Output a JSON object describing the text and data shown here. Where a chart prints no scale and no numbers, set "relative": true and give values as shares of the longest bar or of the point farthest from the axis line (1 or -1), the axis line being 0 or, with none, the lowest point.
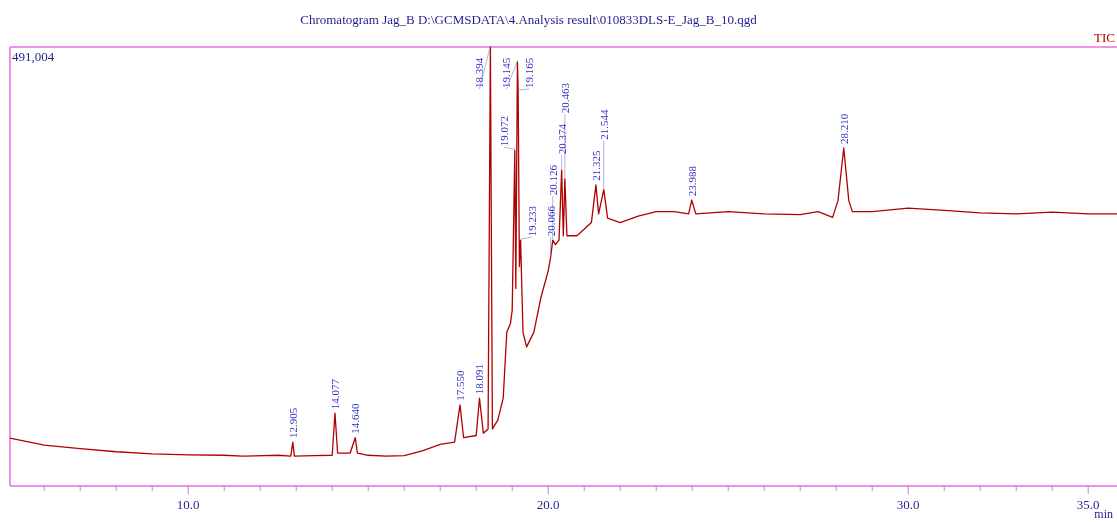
{
  "chart_data": {
    "type": "line",
    "title": "Chromatogram Jag_B D:\\GCMSDATA\\4.Analysis result\\010833DLS-E_Jag_B_10.qgd",
    "xlabel": "min",
    "relative": true,
    "legend": "top right",
    "grid": false,
    "xlim": [
      5.05,
      35.8
    ],
    "xticks": [
      {
        "value": 6,
        "label": null
      },
      {
        "value": 7,
        "label": null
      },
      {
        "value": 8,
        "label": null
      },
      {
        "value": 9,
        "label": null
      },
      {
        "value": 10,
        "label": "10.0"
      },
      {
        "value": 11,
        "label": null
      },
      {
        "value": 12,
        "label": null
      },
      {
        "value": 13,
        "label": null
      },
      {
        "value": 14,
        "label": null
      },
      {
        "value": 15,
        "label": null
      },
      {
        "value": 16,
        "label": null
      },
      {
        "value": 17,
        "label": null
      },
      {
        "value": 18,
        "label": null
      },
      {
        "value": 19,
        "label": null
      },
      {
        "value": 20,
        "label": "20.0"
      },
      {
        "value": 21,
        "label": null
      },
      {
        "value": 22,
        "label": null
      },
      {
        "value": 23,
        "label": null
      },
      {
        "value": 24,
        "label": null
      },
      {
        "value": 25,
        "label": null
      },
      {
        "value": 26,
        "label": null
      },
      {
        "value": 27,
        "label": null
      },
      {
        "value": 28,
        "label": null
      },
      {
        "value": 29,
        "label": null
      },
      {
        "value": 30,
        "label": "30.0"
      },
      {
        "value": 31,
        "label": null
      },
      {
        "value": 32,
        "label": null
      },
      {
        "value": 33,
        "label": null
      },
      {
        "value": 34,
        "label": null
      },
      {
        "value": 35,
        "label": "35.0"
      }
    ],
    "series": [
      {
        "name": "TIC",
        "color": "#b00000",
        "x": [
          5.05,
          6,
          7,
          8,
          9,
          10,
          11,
          11.5,
          12.5,
          12.85,
          12.905,
          12.95,
          13.5,
          14,
          14.077,
          14.15,
          14.5,
          14.64,
          14.7,
          15,
          15.5,
          16,
          16.5,
          17,
          17.4,
          17.55,
          17.65,
          18,
          18.091,
          18.2,
          18.33,
          18.394,
          18.45,
          18.6,
          18.75,
          18.85,
          18.95,
          19,
          19.072,
          19.1,
          19.145,
          19.165,
          19.2,
          19.233,
          19.3,
          19.4,
          19.6,
          19.8,
          20,
          20.066,
          20.126,
          20.2,
          20.3,
          20.374,
          20.42,
          20.463,
          20.52,
          20.8,
          21.2,
          21.325,
          21.4,
          21.544,
          21.65,
          22,
          22.5,
          23,
          23.5,
          23.9,
          23.988,
          24.1,
          25,
          26,
          27,
          27.5,
          27.9,
          28.05,
          28.21,
          28.35,
          28.45,
          29,
          30,
          31,
          32,
          33,
          34,
          35,
          35.8
        ],
        "values": [
          0.109,
          0.093,
          0.085,
          0.078,
          0.073,
          0.071,
          0.07,
          0.068,
          0.07,
          0.068,
          0.1,
          0.068,
          0.069,
          0.07,
          0.166,
          0.075,
          0.075,
          0.11,
          0.075,
          0.07,
          0.068,
          0.069,
          0.08,
          0.095,
          0.1,
          0.185,
          0.11,
          0.115,
          0.2,
          0.12,
          0.13,
          1.0,
          0.13,
          0.15,
          0.2,
          0.35,
          0.37,
          0.4,
          0.765,
          0.45,
          0.966,
          0.9,
          0.5,
          0.56,
          0.35,
          0.317,
          0.35,
          0.43,
          0.49,
          0.52,
          0.56,
          0.55,
          0.56,
          0.72,
          0.57,
          0.7,
          0.57,
          0.57,
          0.6,
          0.686,
          0.62,
          0.675,
          0.61,
          0.6,
          0.615,
          0.625,
          0.625,
          0.62,
          0.651,
          0.62,
          0.625,
          0.62,
          0.618,
          0.625,
          0.612,
          0.65,
          0.77,
          0.65,
          0.625,
          0.625,
          0.633,
          0.628,
          0.622,
          0.62,
          0.624,
          0.62,
          0.62
        ]
      }
    ],
    "annotations": [
      "491,004",
      {
        "text": "12.905",
        "x": 12.905,
        "y": 0.1
      },
      {
        "text": "14.077",
        "x": 14.077,
        "y": 0.166
      },
      {
        "text": "14.640",
        "x": 14.64,
        "y": 0.11
      },
      {
        "text": "17.550",
        "x": 17.55,
        "y": 0.185
      },
      {
        "text": "18.091",
        "x": 18.091,
        "y": 0.2
      },
      {
        "text": "18.394",
        "x": 18.394,
        "y": 1.0
      },
      {
        "text": "19.072",
        "x": 19.072,
        "y": 0.765
      },
      {
        "text": "19.145",
        "x": 19.145,
        "y": 0.966
      },
      {
        "text": "19.165",
        "x": 19.165,
        "y": 0.9
      },
      {
        "text": "19.233",
        "x": 19.233,
        "y": 0.56
      },
      {
        "text": "20.066",
        "x": 20.066,
        "y": 0.52
      },
      {
        "text": "20.126",
        "x": 20.126,
        "y": 0.56
      },
      {
        "text": "20.374",
        "x": 20.374,
        "y": 0.72
      },
      {
        "text": "20.463",
        "x": 20.463,
        "y": 0.7
      },
      {
        "text": "21.325",
        "x": 21.325,
        "y": 0.686
      },
      {
        "text": "21.544",
        "x": 21.544,
        "y": 0.675
      },
      {
        "text": "23.988",
        "x": 23.988,
        "y": 0.651
      },
      {
        "text": "28.210",
        "x": 28.21,
        "y": 0.77
      }
    ]
  }
}
